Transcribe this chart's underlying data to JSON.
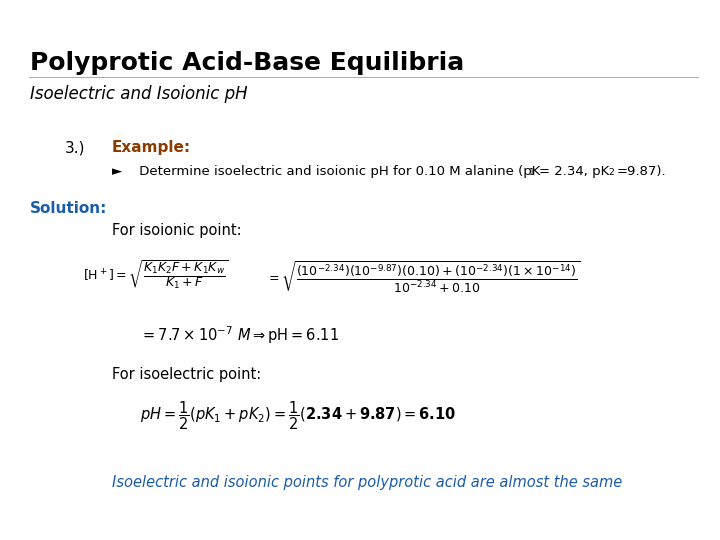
{
  "title": "Polyprotic Acid-Base Equilibria",
  "subtitle": "Isoelectric and Isoionic pH",
  "item_number": "3.)",
  "example_label": "Example:",
  "bullet_text": "►    Determine isoelectric and isoionic pH for 0.10 M alanine (pK",
  "solution_label": "Solution:",
  "isoionic_label": "For isoionic point:",
  "result_line": "$= 7.7 \\times 10^{-7}\\ M \\Rightarrow \\mathrm{pH} = 6.11$",
  "isoelectric_label": "For isoelectric point:",
  "conclusion": "Isoelectric and isoionic points for polyprotic acid are almost the same",
  "bg_color": "#ffffff",
  "title_color": "#000000",
  "subtitle_color": "#000000",
  "example_color": "#8B3A00",
  "solution_color": "#1a5ca8",
  "conclusion_color": "#1a5ca8",
  "text_color": "#000000",
  "fig_width": 7.2,
  "fig_height": 5.4,
  "dpi": 100
}
